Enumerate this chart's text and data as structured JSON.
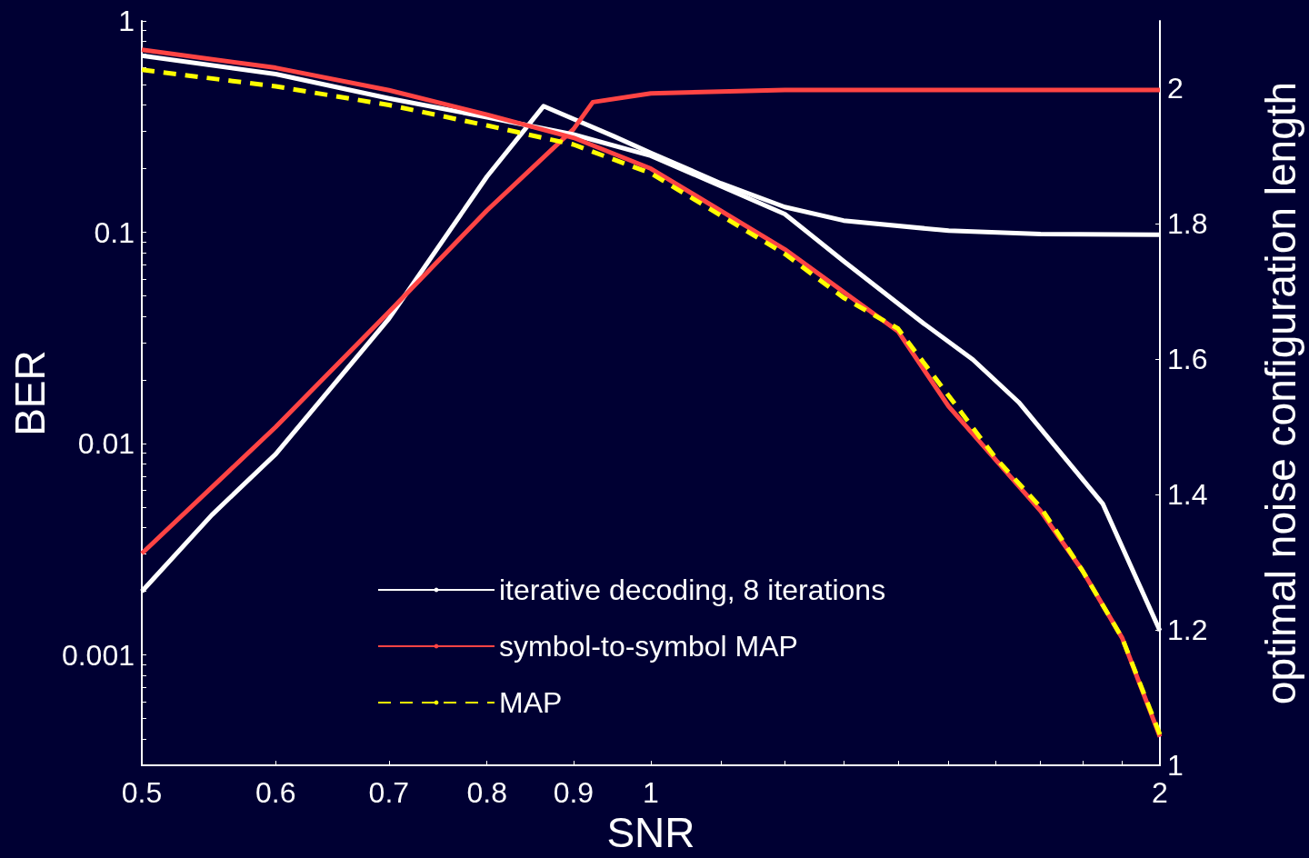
{
  "chart_data": {
    "type": "line",
    "xlabel": "SNR",
    "ylabel": "BER",
    "y2label": "optimal noise configuration length",
    "log": "xy",
    "xlim": [
      0.5,
      2
    ],
    "ylim": [
      0.0003,
      1
    ],
    "y2lim": [
      1,
      2.1
    ],
    "xticks": [
      0.5,
      0.6,
      0.7,
      0.8,
      0.9,
      1,
      {
        "value": 1.1,
        "label": null
      },
      {
        "value": 1.2,
        "label": null
      },
      {
        "value": 1.3,
        "label": null
      },
      {
        "value": 1.4,
        "label": null
      },
      {
        "value": 1.5,
        "label": null
      },
      {
        "value": 1.6,
        "label": null
      },
      {
        "value": 1.7,
        "label": null
      },
      {
        "value": 1.8,
        "label": null
      },
      {
        "value": 1.9,
        "label": null
      },
      2
    ],
    "yticks": [
      {
        "value": 0.0004,
        "label": null
      },
      {
        "value": 0.0005,
        "label": null
      },
      {
        "value": 0.0006,
        "label": null
      },
      {
        "value": 0.0007,
        "label": null
      },
      {
        "value": 0.0008,
        "label": null
      },
      {
        "value": 0.0009,
        "label": null
      },
      0.001,
      {
        "value": 0.002,
        "label": null
      },
      {
        "value": 0.003,
        "label": null
      },
      {
        "value": 0.004,
        "label": null
      },
      {
        "value": 0.005,
        "label": null
      },
      {
        "value": 0.006,
        "label": null
      },
      {
        "value": 0.007,
        "label": null
      },
      {
        "value": 0.008,
        "label": null
      },
      {
        "value": 0.009,
        "label": null
      },
      0.01,
      {
        "value": 0.02,
        "label": null
      },
      {
        "value": 0.03,
        "label": null
      },
      {
        "value": 0.04,
        "label": null
      },
      {
        "value": 0.05,
        "label": null
      },
      {
        "value": 0.06,
        "label": null
      },
      {
        "value": 0.07,
        "label": null
      },
      {
        "value": 0.08,
        "label": null
      },
      {
        "value": 0.09,
        "label": null
      },
      0.1,
      {
        "value": 0.2,
        "label": null
      },
      {
        "value": 0.3,
        "label": null
      },
      {
        "value": 0.4,
        "label": null
      },
      {
        "value": 0.5,
        "label": null
      },
      {
        "value": 0.6,
        "label": null
      },
      {
        "value": 0.7,
        "label": null
      },
      {
        "value": 0.8,
        "label": null
      },
      {
        "value": 0.9,
        "label": null
      },
      1
    ],
    "y2ticks": [
      1,
      1.2,
      1.4,
      1.6,
      1.8,
      2
    ],
    "grid": false,
    "legend": "bottom",
    "marker": "none",
    "series": [
      {
        "name": "iterative decoding, 8 iterations",
        "color": "#ffffff",
        "line_style": "solid",
        "x": [
          0.5,
          0.6,
          0.7,
          0.8,
          0.9,
          1.0,
          1.2,
          1.3,
          1.45,
          1.55,
          1.65,
          1.85,
          2.0
        ],
        "values": [
          0.685,
          0.56,
          0.43,
          0.35,
          0.29,
          0.23,
          0.122,
          0.073,
          0.037,
          0.025,
          0.0157,
          0.0052,
          0.0013
        ]
      },
      {
        "name": "symbol-to-symbol MAP",
        "color": "#ff4444",
        "line_style": "solid",
        "x": [
          0.5,
          0.6,
          0.7,
          0.8,
          0.9,
          1.0,
          1.2,
          1.4,
          1.5,
          1.7,
          1.8,
          1.9,
          2.0
        ],
        "values": [
          0.73,
          0.6,
          0.47,
          0.36,
          0.28,
          0.2,
          0.083,
          0.034,
          0.015,
          0.0048,
          0.0025,
          0.0012,
          0.00041
        ]
      },
      {
        "name": "MAP",
        "color": "#ffff00",
        "line_style": "dashed",
        "x": [
          0.5,
          0.6,
          0.7,
          0.8,
          0.9,
          1.0,
          1.2,
          1.3,
          1.4,
          1.6,
          1.7,
          1.8,
          1.9,
          2.0
        ],
        "values": [
          0.587,
          0.49,
          0.4,
          0.32,
          0.26,
          0.19,
          0.079,
          0.049,
          0.035,
          0.0085,
          0.005,
          0.0025,
          0.0012,
          0.00042
        ]
      },
      {
        "color": "#ffffff",
        "axis": "y2",
        "line_style": "solid",
        "x": [
          0.5,
          0.55,
          0.6,
          0.7,
          0.8,
          0.864,
          0.95,
          1.0,
          1.1,
          1.2,
          1.3,
          1.5,
          1.7,
          2.0
        ],
        "values": [
          1.257,
          1.37,
          1.46,
          1.66,
          1.87,
          1.974,
          1.93,
          1.905,
          1.86,
          1.825,
          1.805,
          1.79,
          1.785,
          1.784
        ]
      },
      {
        "color": "#ff4444",
        "axis": "y2",
        "line_style": "solid",
        "x": [
          0.5,
          0.6,
          0.7,
          0.8,
          0.9,
          0.924,
          1.0,
          1.2,
          2.0
        ],
        "values": [
          1.313,
          1.5,
          1.67,
          1.82,
          1.94,
          1.98,
          1.993,
          1.998,
          1.998
        ]
      }
    ]
  }
}
